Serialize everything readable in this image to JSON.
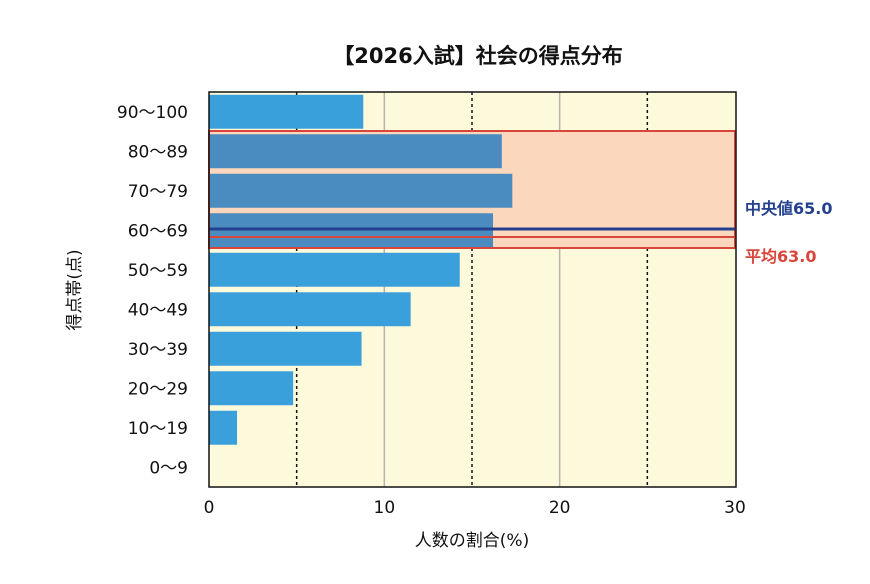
{
  "chart_data": {
    "type": "bar",
    "orientation": "horizontal",
    "title": "【2026入試】社会の得点分布",
    "xlabel": "人数の割合(%)",
    "ylabel": "得点帯(点)",
    "xlim": [
      0,
      30
    ],
    "xticks": [
      "0",
      "10",
      "20",
      "30"
    ],
    "categories": [
      "90〜100",
      "80〜89",
      "70〜79",
      "60〜69",
      "50〜59",
      "40〜49",
      "30〜39",
      "20〜29",
      "10〜19",
      "0〜9"
    ],
    "values": [
      8.8,
      16.7,
      17.3,
      16.2,
      14.3,
      11.5,
      8.7,
      4.8,
      1.6,
      0.0
    ],
    "grid": true,
    "colors": {
      "bar": "#3aa0db",
      "bar_highlighted": "#4a8cbf",
      "plot_background": "#fdfadc",
      "highlight_band": "#fbd8bd",
      "highlight_border": "#d9453a",
      "median": "#24408e",
      "mean": "#d9453a"
    },
    "highlight_range": [
      "80〜89",
      "60〜69"
    ],
    "annotations": {
      "median": {
        "label": "中央値65.0",
        "value": 65.0
      },
      "mean": {
        "label": "平均63.0",
        "value": 63.0
      }
    }
  }
}
